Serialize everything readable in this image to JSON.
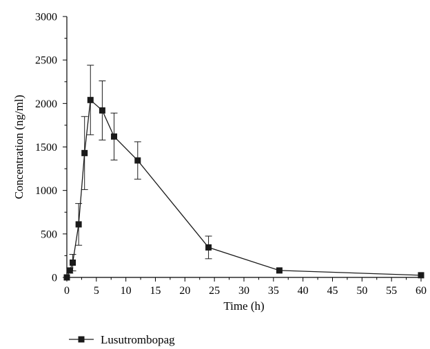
{
  "chart_data": {
    "type": "line",
    "title": "",
    "xlabel": "Time (h)",
    "ylabel": "Concentration (ng/ml)",
    "xlim": [
      0,
      60
    ],
    "ylim": [
      0,
      3000
    ],
    "xticks": [
      0,
      5,
      10,
      15,
      20,
      25,
      30,
      35,
      40,
      45,
      50,
      55,
      60
    ],
    "yticks": [
      0,
      500,
      1000,
      1500,
      2000,
      2500,
      3000
    ],
    "grid": false,
    "legend_position": "bottom-left",
    "series": [
      {
        "name": "Lusutrombopag",
        "color": "#1a1a1a",
        "marker": "square",
        "x": [
          0,
          0.5,
          1,
          2,
          3,
          4,
          6,
          8,
          12,
          24,
          36,
          60
        ],
        "y": [
          0,
          80,
          170,
          610,
          1430,
          2040,
          1920,
          1620,
          1345,
          345,
          80,
          25
        ],
        "error": [
          0,
          30,
          95,
          240,
          420,
          400,
          340,
          270,
          215,
          130,
          0,
          0
        ]
      }
    ]
  }
}
